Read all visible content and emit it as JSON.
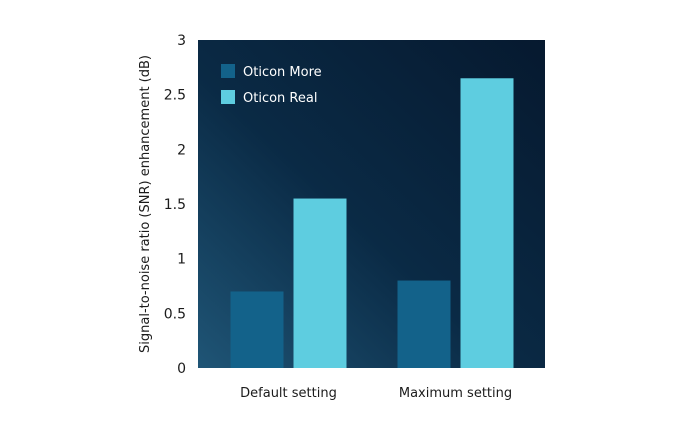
{
  "chart_data": {
    "type": "bar",
    "title": "",
    "xlabel": "",
    "ylabel": "Signal-to-noise ratio (SNR) enhancement (dB)",
    "ylim": [
      0,
      3
    ],
    "yticks": [
      "0",
      "0.5",
      "1",
      "1.5",
      "2",
      "2.5",
      "3"
    ],
    "categories": [
      "Default setting",
      "Maximum setting"
    ],
    "series": [
      {
        "name": "Oticon More",
        "values": [
          0.7,
          0.8
        ],
        "color": "#13628a"
      },
      {
        "name": "Oticon Real",
        "values": [
          1.55,
          2.65
        ],
        "color": "#5ecde0"
      }
    ],
    "grid": false,
    "legend": "top-left",
    "background": [
      "#1f5576",
      "#0a2a45",
      "#06192f"
    ]
  }
}
